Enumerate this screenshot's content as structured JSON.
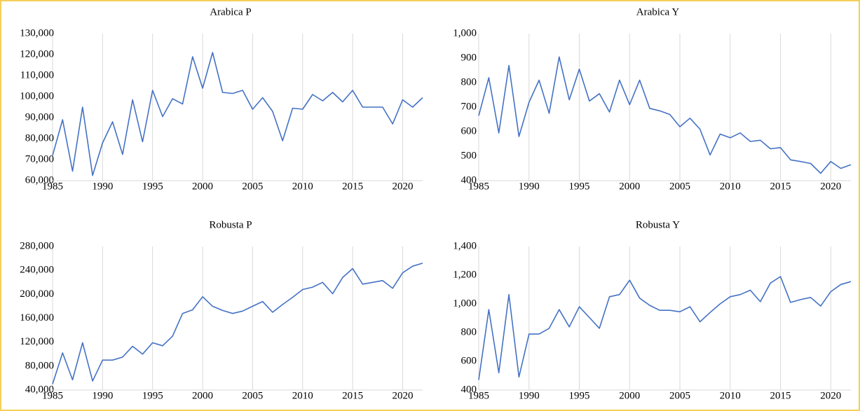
{
  "chart_data": [
    {
      "type": "line",
      "title": "Arabica P",
      "color": "#4472c4",
      "grid": "x",
      "x": [
        1985,
        1986,
        1987,
        1988,
        1989,
        1990,
        1991,
        1992,
        1993,
        1994,
        1995,
        1996,
        1997,
        1998,
        1999,
        2000,
        2001,
        2002,
        2003,
        2004,
        2005,
        2006,
        2007,
        2008,
        2009,
        2010,
        2011,
        2012,
        2013,
        2014,
        2015,
        2016,
        2017,
        2018,
        2019,
        2020,
        2021,
        2022
      ],
      "values": [
        72000,
        89000,
        64500,
        95000,
        62500,
        78000,
        88000,
        72500,
        98500,
        78500,
        103000,
        90500,
        99000,
        96500,
        119000,
        104000,
        121000,
        102000,
        101500,
        103000,
        94000,
        99500,
        93000,
        79000,
        94500,
        94000,
        101000,
        98000,
        102000,
        97500,
        103000,
        95000,
        95000,
        95000,
        87000,
        98500,
        95000,
        99500
      ],
      "xlim": [
        1985,
        2022
      ],
      "xticks": [
        1985,
        1990,
        1995,
        2000,
        2005,
        2010,
        2015,
        2020
      ],
      "ylim": [
        60000,
        130000
      ],
      "yticks": [
        {
          "value": 60000,
          "label": "60,000"
        },
        {
          "value": 70000,
          "label": "70,000"
        },
        {
          "value": 80000,
          "label": "80,000"
        },
        {
          "value": 90000,
          "label": "90,000"
        },
        {
          "value": 100000,
          "label": "100,000"
        },
        {
          "value": 110000,
          "label": "110,000"
        },
        {
          "value": 120000,
          "label": "120,000"
        },
        {
          "value": 130000,
          "label": "130,000"
        }
      ]
    },
    {
      "type": "line",
      "title": "Arabica Y",
      "color": "#4472c4",
      "grid": "x",
      "x": [
        1985,
        1986,
        1987,
        1988,
        1989,
        1990,
        1991,
        1992,
        1993,
        1994,
        1995,
        1996,
        1997,
        1998,
        1999,
        2000,
        2001,
        2002,
        2003,
        2004,
        2005,
        2006,
        2007,
        2008,
        2009,
        2010,
        2011,
        2012,
        2013,
        2014,
        2015,
        2016,
        2017,
        2018,
        2019,
        2020,
        2021,
        2022
      ],
      "values": [
        665,
        820,
        595,
        870,
        580,
        720,
        810,
        675,
        905,
        730,
        855,
        725,
        755,
        680,
        810,
        710,
        810,
        695,
        685,
        670,
        620,
        655,
        610,
        505,
        590,
        575,
        595,
        560,
        565,
        530,
        535,
        485,
        478,
        470,
        430,
        478,
        450,
        465
      ],
      "xlim": [
        1985,
        2022
      ],
      "xticks": [
        1985,
        1990,
        1995,
        2000,
        2005,
        2010,
        2015,
        2020
      ],
      "ylim": [
        400,
        1000
      ],
      "yticks": [
        400,
        500,
        600,
        700,
        800,
        900,
        {
          "value": 1000,
          "label": "1,000"
        }
      ]
    },
    {
      "type": "line",
      "title": "Robusta P",
      "color": "#4472c4",
      "grid": "x",
      "x": [
        1985,
        1986,
        1987,
        1988,
        1989,
        1990,
        1991,
        1992,
        1993,
        1994,
        1995,
        1996,
        1997,
        1998,
        1999,
        2000,
        2001,
        2002,
        2003,
        2004,
        2005,
        2006,
        2007,
        2008,
        2009,
        2010,
        2011,
        2012,
        2013,
        2014,
        2015,
        2016,
        2017,
        2018,
        2019,
        2020,
        2021,
        2022
      ],
      "values": [
        50000,
        102000,
        57000,
        119000,
        55000,
        90000,
        90000,
        95000,
        113000,
        100000,
        119000,
        114000,
        130000,
        168000,
        174000,
        196000,
        180000,
        173000,
        168000,
        172000,
        180000,
        188000,
        170000,
        183000,
        195000,
        208000,
        212000,
        220000,
        201000,
        228000,
        243000,
        217000,
        220000,
        223000,
        210000,
        236000,
        247000,
        252000
      ],
      "xlim": [
        1985,
        2022
      ],
      "xticks": [
        1985,
        1990,
        1995,
        2000,
        2005,
        2010,
        2015,
        2020
      ],
      "ylim": [
        40000,
        280000
      ],
      "yticks": [
        {
          "value": 40000,
          "label": "40,000"
        },
        {
          "value": 80000,
          "label": "80,000"
        },
        {
          "value": 120000,
          "label": "120,000"
        },
        {
          "value": 160000,
          "label": "160,000"
        },
        {
          "value": 200000,
          "label": "200,000"
        },
        {
          "value": 240000,
          "label": "240,000"
        },
        {
          "value": 280000,
          "label": "280,000"
        }
      ]
    },
    {
      "type": "line",
      "title": "Robusta Y",
      "color": "#4472c4",
      "grid": "x",
      "x": [
        1985,
        1986,
        1987,
        1988,
        1989,
        1990,
        1991,
        1992,
        1993,
        1994,
        1995,
        1996,
        1997,
        1998,
        1999,
        2000,
        2001,
        2002,
        2003,
        2004,
        2005,
        2006,
        2007,
        2008,
        2009,
        2010,
        2011,
        2012,
        2013,
        2014,
        2015,
        2016,
        2017,
        2018,
        2019,
        2020,
        2021,
        2022
      ],
      "values": [
        470,
        960,
        520,
        1065,
        490,
        790,
        790,
        830,
        960,
        840,
        980,
        905,
        830,
        1050,
        1065,
        1165,
        1040,
        990,
        955,
        955,
        945,
        980,
        875,
        940,
        1000,
        1050,
        1065,
        1095,
        1015,
        1145,
        1190,
        1010,
        1030,
        1045,
        985,
        1085,
        1135,
        1155
      ],
      "xlim": [
        1985,
        2022
      ],
      "xticks": [
        1985,
        1990,
        1995,
        2000,
        2005,
        2010,
        2015,
        2020
      ],
      "ylim": [
        400,
        1400
      ],
      "yticks": [
        400,
        600,
        800,
        {
          "value": 1000,
          "label": "1,000"
        },
        {
          "value": 1200,
          "label": "1,200"
        },
        {
          "value": 1400,
          "label": "1,400"
        }
      ]
    }
  ]
}
